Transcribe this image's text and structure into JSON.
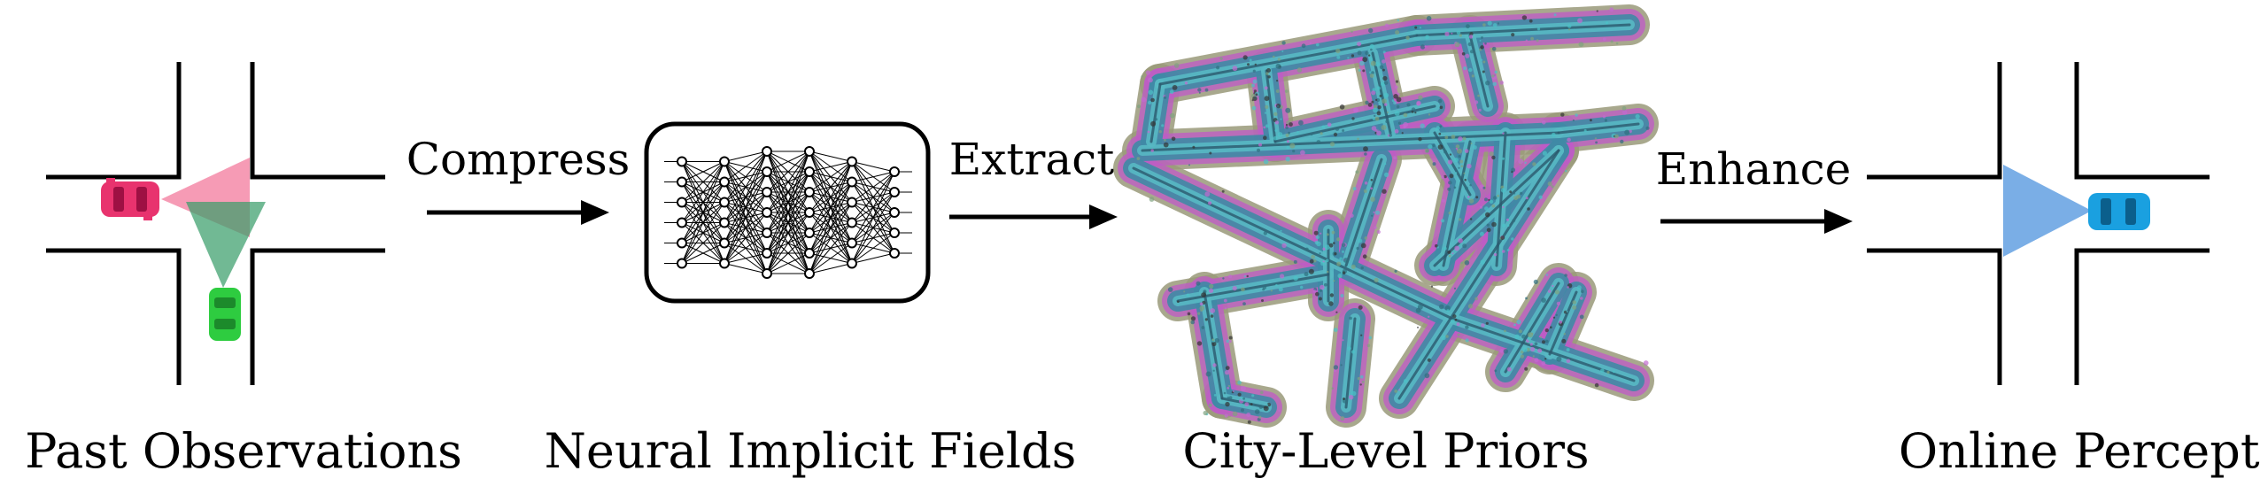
{
  "captions": {
    "past": "Past Observations",
    "neural": "Neural Implicit Fields",
    "city": "City-Level Priors",
    "online": "Online Perception"
  },
  "arrows": {
    "compress": "Compress",
    "extract": "Extract",
    "enhance": "Enhance"
  },
  "colors": {
    "pink_car": "#e8336e",
    "pink_cone": "#f48aa8",
    "green_car": "#2ecc40",
    "green_cone": "#3a9e6b",
    "blue_car": "#1aa0e0",
    "blue_cone": "#7aaee6",
    "road_line": "#000000"
  },
  "icons": {
    "pink_vehicle": "car-top-view-icon",
    "green_vehicle": "car-top-view-icon",
    "blue_vehicle": "car-top-view-icon",
    "network": "neural-network-icon",
    "city_map": "point-cloud-map-image"
  }
}
